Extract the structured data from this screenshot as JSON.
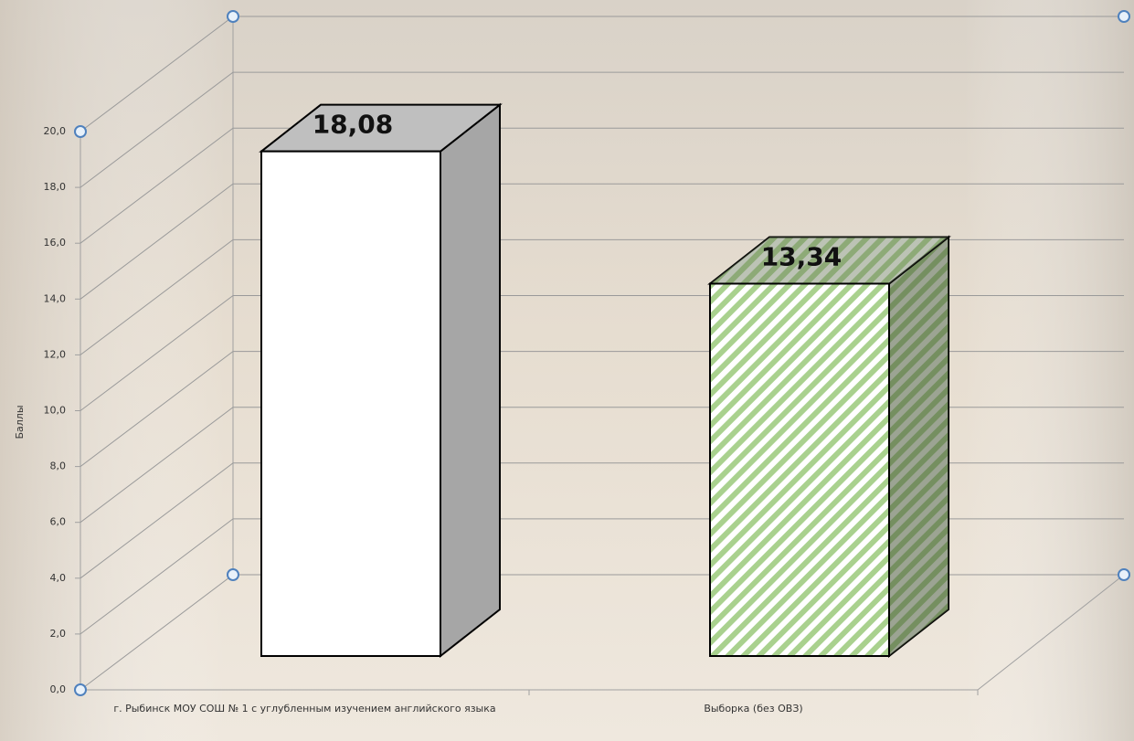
{
  "chart_data": {
    "type": "bar3d",
    "y_label": "Баллы",
    "categories": [
      "г. Рыбинск   МОУ СОШ № 1 с углубленным изучением английского языка",
      "Выборка (без ОВЗ)"
    ],
    "values": [
      18.08,
      13.34
    ],
    "value_labels": [
      "18,08",
      "13,34"
    ],
    "colors": [
      "#ffffff",
      "#a9d18e"
    ],
    "hatch": [
      false,
      true
    ],
    "ylim": [
      0,
      20
    ],
    "yticks": [
      {
        "value": 0,
        "label": "0,0"
      },
      {
        "value": 2,
        "label": "2,0"
      },
      {
        "value": 4,
        "label": "4,0"
      },
      {
        "value": 6,
        "label": "6,0"
      },
      {
        "value": 8,
        "label": "8,0"
      },
      {
        "value": 10,
        "label": "10,0"
      },
      {
        "value": 12,
        "label": "12,0"
      },
      {
        "value": 14,
        "label": "14,0"
      },
      {
        "value": 16,
        "label": "16,0"
      },
      {
        "value": 18,
        "label": "18,0"
      },
      {
        "value": 20,
        "label": "20,0"
      }
    ],
    "grid": true
  }
}
